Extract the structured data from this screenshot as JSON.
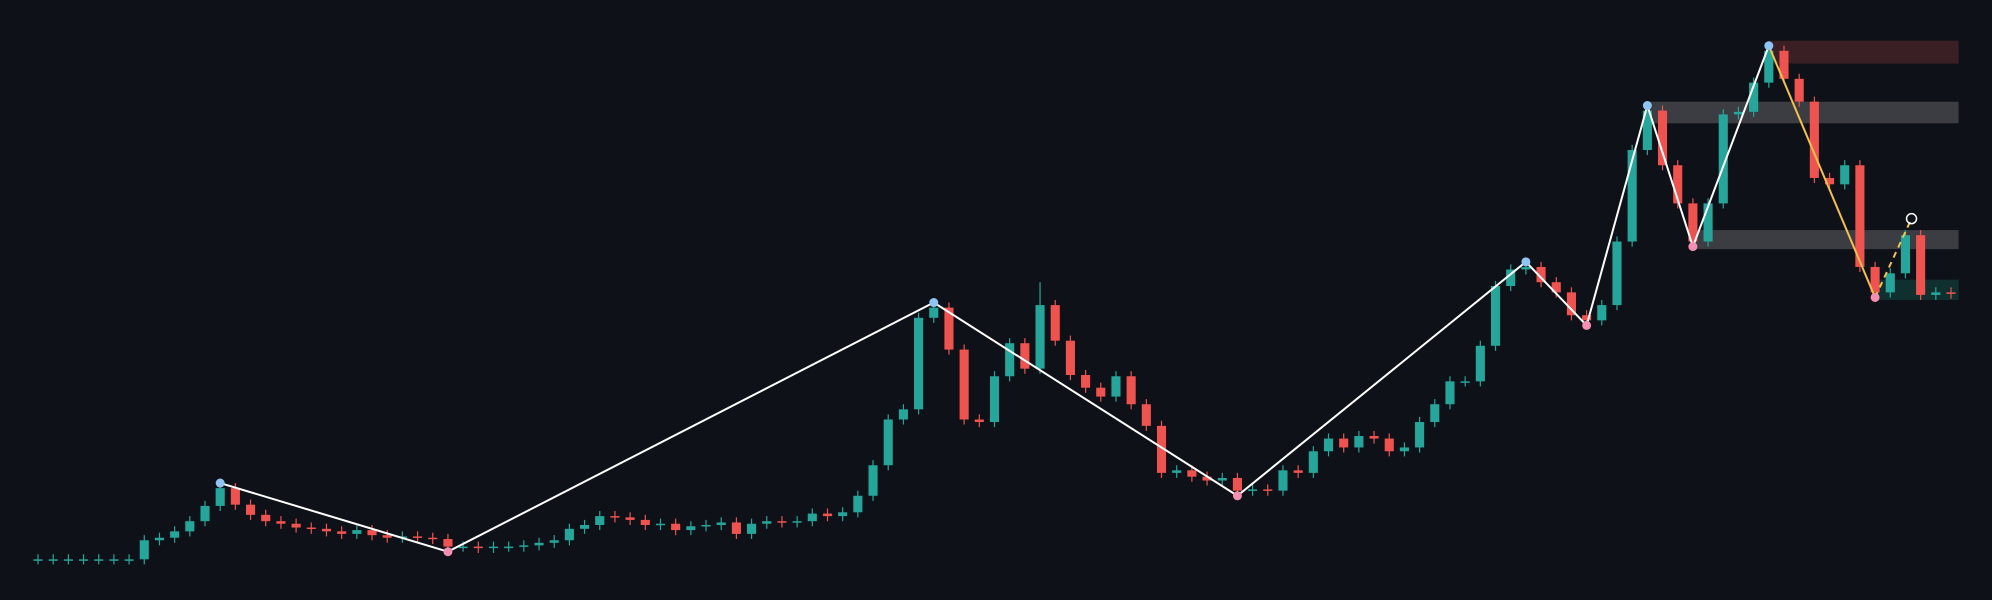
{
  "chart_data": {
    "type": "candlestick",
    "background": "#0e1117",
    "up_color": "#26a69a",
    "down_color": "#ef5350",
    "xlim": [
      0,
      126
    ],
    "ylim": [
      0,
      472
    ],
    "open": [
      32,
      32,
      32,
      32,
      32,
      32,
      32,
      32,
      47,
      49,
      54,
      62,
      74,
      88,
      75,
      67,
      62,
      60,
      57,
      56,
      54,
      52,
      55,
      51,
      49,
      50,
      49,
      48,
      42,
      42,
      41,
      42,
      42,
      43,
      45,
      47,
      56,
      59,
      66,
      65,
      63,
      59,
      60,
      55,
      58,
      59,
      61,
      52,
      60,
      62,
      61,
      62,
      68,
      66,
      69,
      82,
      106,
      142,
      150,
      222,
      230,
      197,
      142,
      140,
      176,
      202,
      182,
      232,
      204,
      177,
      167,
      160,
      176,
      154,
      137,
      100,
      102,
      97,
      94,
      96,
      86,
      87,
      86,
      102,
      100,
      117,
      127,
      120,
      129,
      127,
      117,
      120,
      140,
      154,
      172,
      172,
      200,
      247,
      260,
      262,
      250,
      242,
      224,
      220,
      232,
      282,
      354,
      385,
      342,
      312,
      282,
      312,
      382,
      384,
      407,
      432,
      410,
      392,
      332,
      327,
      342,
      262,
      242,
      257,
      287,
      240,
      242
    ],
    "high": [
      36,
      36,
      36,
      36,
      36,
      36,
      36,
      51,
      53,
      58,
      66,
      78,
      92,
      92,
      79,
      71,
      66,
      64,
      61,
      60,
      58,
      59,
      59,
      55,
      54,
      54,
      53,
      52,
      46,
      46,
      46,
      46,
      47,
      49,
      51,
      60,
      63,
      70,
      70,
      69,
      67,
      64,
      64,
      62,
      63,
      65,
      65,
      64,
      66,
      66,
      66,
      72,
      72,
      73,
      86,
      110,
      146,
      154,
      226,
      234,
      234,
      201,
      146,
      180,
      206,
      206,
      250,
      236,
      208,
      181,
      171,
      180,
      180,
      158,
      141,
      106,
      106,
      101,
      100,
      100,
      91,
      91,
      106,
      106,
      121,
      131,
      131,
      133,
      133,
      131,
      124,
      144,
      158,
      176,
      176,
      204,
      251,
      264,
      266,
      266,
      254,
      246,
      228,
      236,
      286,
      358,
      389,
      389,
      346,
      316,
      316,
      386,
      388,
      411,
      436,
      436,
      414,
      396,
      336,
      346,
      346,
      266,
      261,
      291,
      291,
      246,
      246
    ],
    "low": [
      28,
      28,
      28,
      28,
      28,
      28,
      28,
      28,
      43,
      45,
      50,
      58,
      70,
      71,
      63,
      58,
      56,
      53,
      52,
      50,
      48,
      48,
      47,
      45,
      45,
      45,
      44,
      38,
      38,
      37,
      37,
      38,
      38,
      39,
      41,
      43,
      52,
      55,
      61,
      59,
      55,
      55,
      51,
      51,
      54,
      55,
      48,
      48,
      56,
      57,
      57,
      58,
      62,
      62,
      65,
      78,
      102,
      138,
      146,
      218,
      193,
      138,
      136,
      136,
      172,
      178,
      178,
      200,
      173,
      163,
      156,
      156,
      150,
      133,
      96,
      96,
      93,
      90,
      90,
      82,
      82,
      82,
      82,
      96,
      96,
      113,
      116,
      116,
      123,
      113,
      113,
      116,
      136,
      150,
      168,
      168,
      196,
      243,
      256,
      246,
      238,
      220,
      216,
      216,
      228,
      278,
      350,
      338,
      308,
      278,
      278,
      308,
      378,
      380,
      403,
      406,
      388,
      328,
      323,
      323,
      258,
      238,
      238,
      253,
      236,
      236,
      237
    ],
    "close": [
      32,
      32,
      32,
      32,
      32,
      32,
      32,
      47,
      49,
      54,
      62,
      74,
      88,
      75,
      67,
      62,
      60,
      57,
      56,
      54,
      52,
      55,
      51,
      49,
      50,
      49,
      48,
      42,
      42,
      41,
      42,
      42,
      43,
      45,
      47,
      56,
      59,
      66,
      65,
      63,
      59,
      60,
      55,
      58,
      59,
      61,
      52,
      60,
      62,
      61,
      62,
      68,
      66,
      69,
      82,
      106,
      142,
      150,
      222,
      230,
      197,
      142,
      140,
      176,
      202,
      182,
      232,
      204,
      177,
      167,
      160,
      176,
      154,
      137,
      100,
      102,
      97,
      94,
      96,
      86,
      87,
      86,
      102,
      100,
      117,
      127,
      120,
      129,
      127,
      117,
      120,
      140,
      154,
      172,
      172,
      200,
      247,
      260,
      262,
      250,
      242,
      224,
      220,
      232,
      282,
      354,
      385,
      342,
      312,
      282,
      312,
      382,
      384,
      407,
      432,
      410,
      392,
      332,
      327,
      342,
      262,
      242,
      257,
      287,
      240,
      242,
      241
    ],
    "zones": [
      {
        "color": "#3a2024",
        "x": [
          114,
          126
        ],
        "y": [
          422,
          440
        ]
      },
      {
        "color": "#3b3d42",
        "x": [
          106,
          126
        ],
        "y": [
          375,
          392
        ]
      },
      {
        "color": "#3b3d42",
        "x": [
          109,
          126
        ],
        "y": [
          276,
          291
        ]
      },
      {
        "color": "#10302f",
        "x": [
          121,
          126
        ],
        "y": [
          236,
          252
        ]
      }
    ],
    "zigzag": {
      "color": "#ffffff",
      "x": [
        12,
        27,
        59,
        79,
        98,
        102,
        106,
        109,
        114
      ],
      "y": [
        92,
        38,
        234,
        82,
        266,
        216,
        389,
        278,
        436
      ],
      "pivot_colors": [
        "#8ec5f5",
        "#f48fb1",
        "#8ec5f5",
        "#f48fb1",
        "#8ec5f5",
        "#f48fb1",
        "#8ec5f5",
        "#f48fb1",
        "#8ec5f5"
      ]
    },
    "last_leg": {
      "color": "#f2c14e",
      "x": [
        114,
        121
      ],
      "y": [
        436,
        238
      ]
    },
    "projection": {
      "color": "#f2c14e",
      "x": [
        121,
        123.4
      ],
      "y": [
        238,
        300
      ]
    }
  }
}
